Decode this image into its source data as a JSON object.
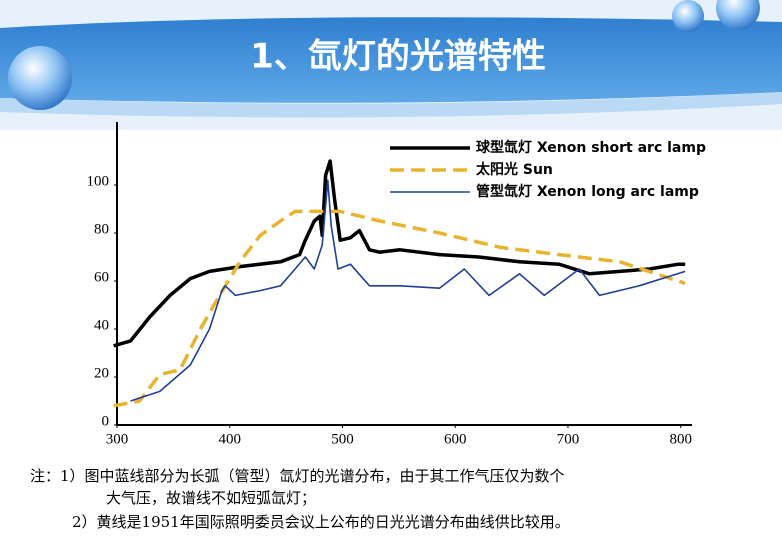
{
  "slide_title": "1、氙灯的光谱特性",
  "chart_data": {
    "type": "line",
    "xlim": [
      300,
      810
    ],
    "ylim": [
      0,
      125
    ],
    "xticks": [
      300,
      400,
      500,
      600,
      700,
      800
    ],
    "yticks": [
      0,
      20,
      40,
      60,
      80,
      100
    ],
    "series": [
      {
        "name": "球型氙灯 Xenon short arc lamp",
        "color": "#000000",
        "x": [
          297,
          312,
          329,
          347,
          365,
          382,
          409,
          445,
          462,
          467,
          475,
          480,
          482,
          485,
          489,
          493,
          498,
          507,
          515,
          524,
          533,
          551,
          586,
          621,
          657,
          692,
          719,
          746,
          772,
          798,
          804
        ],
        "values": [
          33,
          35,
          45,
          54,
          61,
          64,
          66,
          68,
          71,
          77,
          85,
          87,
          79,
          104,
          110,
          94,
          77,
          78,
          81,
          73,
          72,
          73,
          71,
          70,
          68,
          67,
          63,
          64,
          65,
          67,
          67
        ]
      },
      {
        "name": "太阳光 Sun",
        "color": "#e8b430",
        "x": [
          297,
          320,
          338,
          356,
          374,
          391,
          409,
          427,
          445,
          458,
          498,
          533,
          586,
          640,
          692,
          746,
          804
        ],
        "values": [
          8,
          10,
          21,
          23,
          40,
          54,
          68,
          79,
          85,
          89,
          89,
          85,
          80,
          74,
          71,
          68,
          59
        ]
      },
      {
        "name": "管型氙灯 Xenon long arc lamp",
        "color": "#1f3f99",
        "x": [
          312,
          338,
          365,
          382,
          393,
          396,
          405,
          427,
          445,
          458,
          467,
          475,
          482,
          487,
          490,
          496,
          507,
          524,
          551,
          586,
          608,
          630,
          657,
          679,
          710,
          728,
          763,
          804
        ],
        "values": [
          10,
          14,
          25,
          40,
          56,
          58,
          54,
          56,
          58,
          65,
          70,
          65,
          75,
          102,
          83,
          65,
          67,
          58,
          58,
          57,
          65,
          54,
          63,
          54,
          65,
          54,
          58,
          64
        ]
      }
    ]
  },
  "notes": [
    "注：1）图中蓝线部分为长弧（管型）氙灯的光谱分布，由于其工作气压仅为数个",
    "大气压，故谱线不如短弧氙灯；",
    "2）黄线是1951年国际照明委员会议上公布的日光光谱分布曲线供比较用。"
  ]
}
